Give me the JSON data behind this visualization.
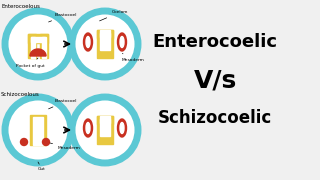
{
  "bg_color": "#f0f0f0",
  "title1": "Enterocoelic",
  "title2": "V/s",
  "title3": "Schizocoelic",
  "label_entero": "Enterocoelous",
  "label_schizo": "Schizocoelous",
  "label_blastocoel1": "Blastocoel",
  "label_blastocoel2": "Blastocoel",
  "label_pocket": "Pocket of gut",
  "label_coelom": "Coelom",
  "label_mesoderm1": "Mesoderm",
  "label_mesoderm2": "Mesoderm",
  "label_gut": "Gut",
  "cyan": "#5bc8d4",
  "yellow": "#e8c840",
  "red": "#c83020",
  "white": "#ffffff",
  "black": "#000000"
}
